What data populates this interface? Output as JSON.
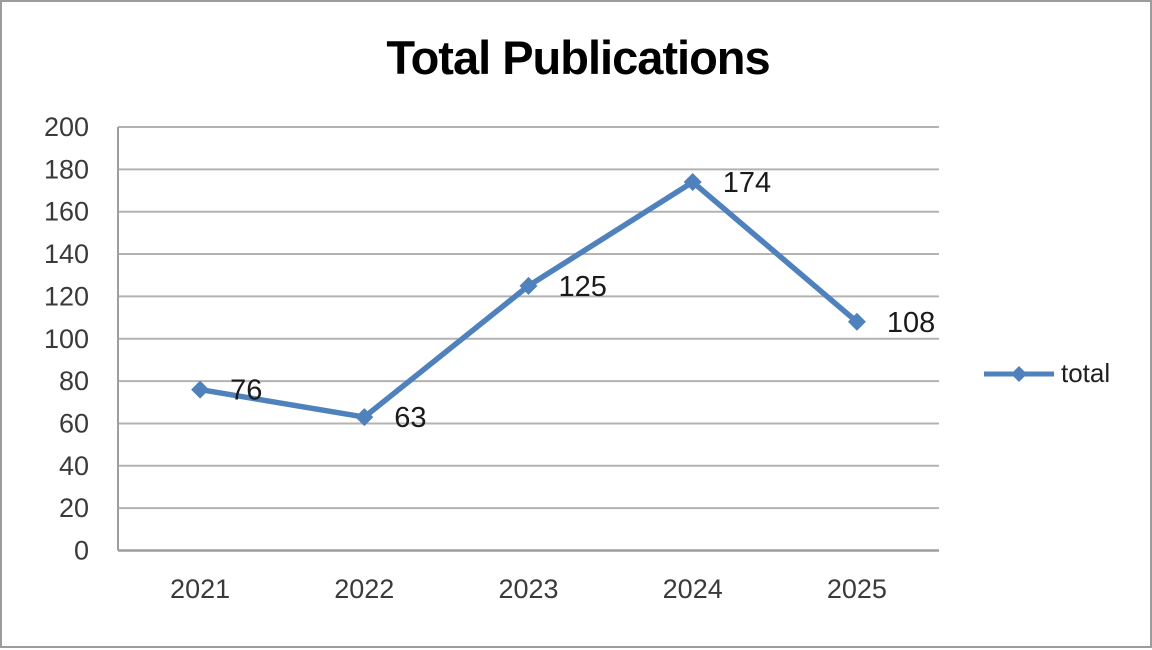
{
  "chart_data": {
    "type": "line",
    "title": "Total Publications",
    "categories": [
      "2021",
      "2022",
      "2023",
      "2024",
      "2025"
    ],
    "series": [
      {
        "name": "total",
        "values": [
          76,
          63,
          125,
          174,
          108
        ]
      }
    ],
    "data_labels": [
      "76",
      "63",
      "125",
      "174",
      "108"
    ],
    "ylim": [
      0,
      200
    ],
    "ytick_step": 20,
    "ytick_labels": [
      "0",
      "20",
      "40",
      "60",
      "80",
      "100",
      "120",
      "140",
      "160",
      "180",
      "200"
    ],
    "grid": true,
    "legend_position": "right",
    "legend_label": "total",
    "marker": "diamond",
    "colors": {
      "line": "#4F81BD",
      "marker": "#4F81BD",
      "gridline": "#b3b3b3",
      "axis": "#9e9e9e",
      "tick_text": "#3a3a3a",
      "data_label_text": "#1a1a1a",
      "title_text": "#000000",
      "frame_border": "#9c9c9c",
      "background": "#ffffff"
    }
  }
}
